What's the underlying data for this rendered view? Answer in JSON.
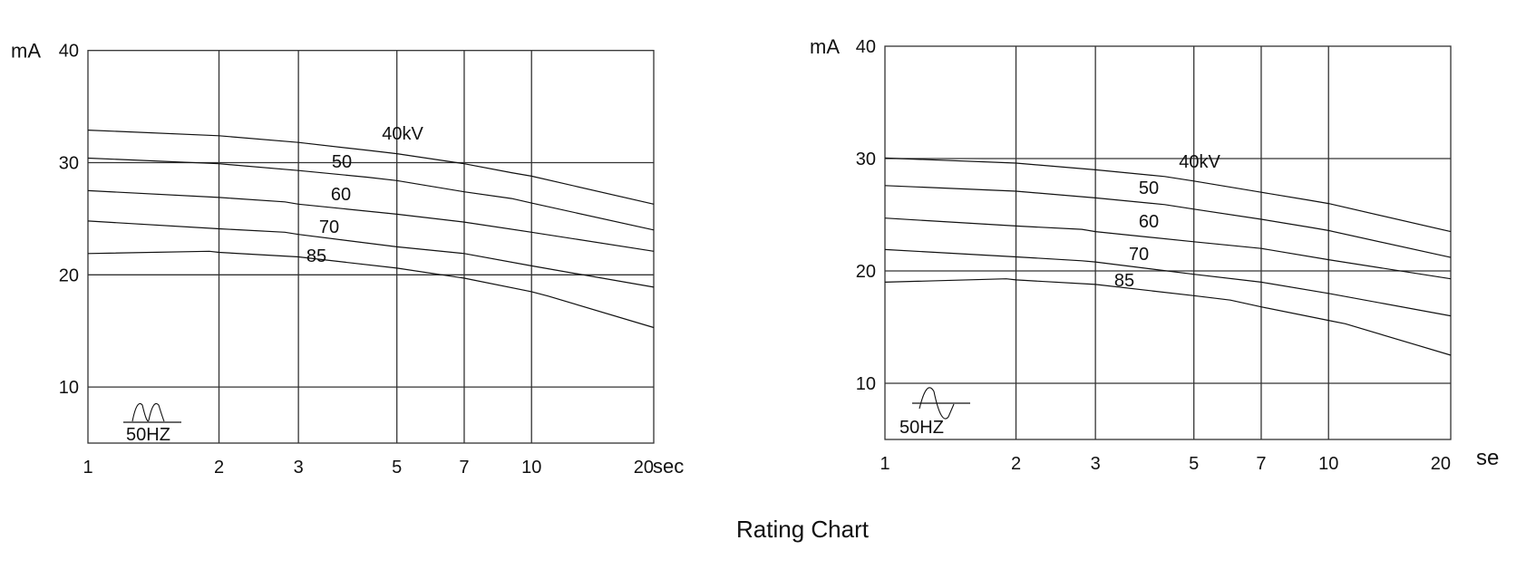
{
  "title": "Rating Chart",
  "chart_data": [
    {
      "type": "line",
      "ylabel": "mA",
      "xunit": "sec",
      "xscale": "log",
      "xlim": [
        1,
        20
      ],
      "ylim": [
        5,
        40
      ],
      "xticks": [
        1,
        2,
        3,
        5,
        7,
        10,
        20
      ],
      "xtick_labels": [
        "1",
        "2",
        "3",
        "5",
        "7",
        "10",
        "20"
      ],
      "yticks": [
        10,
        20,
        30,
        40
      ],
      "ytick_labels": [
        "10",
        "20",
        "30",
        "40"
      ],
      "grid": true,
      "waveform_label": "50HZ",
      "waveform": "full-wave rectified",
      "series": [
        {
          "name": "40kV",
          "x": [
            1,
            2,
            3,
            4.3,
            5,
            7,
            9,
            10,
            20
          ],
          "y": [
            32.9,
            32.4,
            31.8,
            31.1,
            30.8,
            29.9,
            29.1,
            28.8,
            26.3
          ]
        },
        {
          "name": "50",
          "x": [
            1,
            2,
            3,
            4.3,
            5,
            7,
            9,
            10,
            20
          ],
          "y": [
            30.4,
            29.9,
            29.3,
            28.7,
            28.4,
            27.4,
            26.8,
            26.4,
            24.0
          ]
        },
        {
          "name": "60",
          "x": [
            1,
            2,
            2.8,
            3,
            5,
            7,
            10,
            20
          ],
          "y": [
            27.5,
            26.9,
            26.5,
            26.3,
            25.4,
            24.7,
            23.8,
            22.1
          ]
        },
        {
          "name": "70",
          "x": [
            1,
            2,
            2.8,
            3,
            5,
            7,
            10,
            20
          ],
          "y": [
            24.8,
            24.1,
            23.8,
            23.6,
            22.5,
            21.9,
            20.8,
            18.9
          ]
        },
        {
          "name": "85",
          "x": [
            1,
            1.9,
            2,
            3,
            5,
            7,
            10,
            11,
            20
          ],
          "y": [
            21.9,
            22.1,
            22.0,
            21.6,
            20.6,
            19.7,
            18.5,
            18.1,
            15.3
          ]
        }
      ]
    },
    {
      "type": "line",
      "ylabel": "mA",
      "xunit": "se",
      "xscale": "log",
      "xlim": [
        1,
        20
      ],
      "ylim": [
        5,
        40
      ],
      "xticks": [
        1,
        2,
        3,
        5,
        7,
        10,
        20
      ],
      "xtick_labels": [
        "1",
        "2",
        "3",
        "5",
        "7",
        "10",
        "20"
      ],
      "yticks": [
        10,
        20,
        30,
        40
      ],
      "ytick_labels": [
        "10",
        "20",
        "30",
        "40"
      ],
      "grid": true,
      "waveform_label": "50HZ",
      "waveform": "sine",
      "series": [
        {
          "name": "40kV",
          "x": [
            1,
            2,
            3,
            4.3,
            5,
            7,
            9,
            10,
            20
          ],
          "y": [
            30.05,
            29.6,
            29.0,
            28.4,
            28.0,
            27.0,
            26.3,
            26.0,
            23.5
          ]
        },
        {
          "name": "50",
          "x": [
            1,
            2,
            3,
            4.3,
            5,
            7,
            9,
            10,
            20
          ],
          "y": [
            27.6,
            27.1,
            26.5,
            25.9,
            25.5,
            24.6,
            23.9,
            23.6,
            21.2
          ]
        },
        {
          "name": "60",
          "x": [
            1,
            2,
            2.8,
            3,
            5,
            7,
            10,
            20
          ],
          "y": [
            24.7,
            24.0,
            23.7,
            23.5,
            22.6,
            22.0,
            21.0,
            19.3
          ]
        },
        {
          "name": "70",
          "x": [
            1,
            2,
            2.8,
            3,
            5,
            7,
            10,
            20
          ],
          "y": [
            21.9,
            21.25,
            20.9,
            20.8,
            19.7,
            19.0,
            18.0,
            16.0
          ]
        },
        {
          "name": "85",
          "x": [
            1,
            1.9,
            2,
            3,
            5,
            6,
            7,
            10,
            11,
            20
          ],
          "y": [
            19.0,
            19.3,
            19.2,
            18.8,
            17.8,
            17.4,
            16.8,
            15.6,
            15.3,
            12.5
          ]
        }
      ]
    }
  ]
}
